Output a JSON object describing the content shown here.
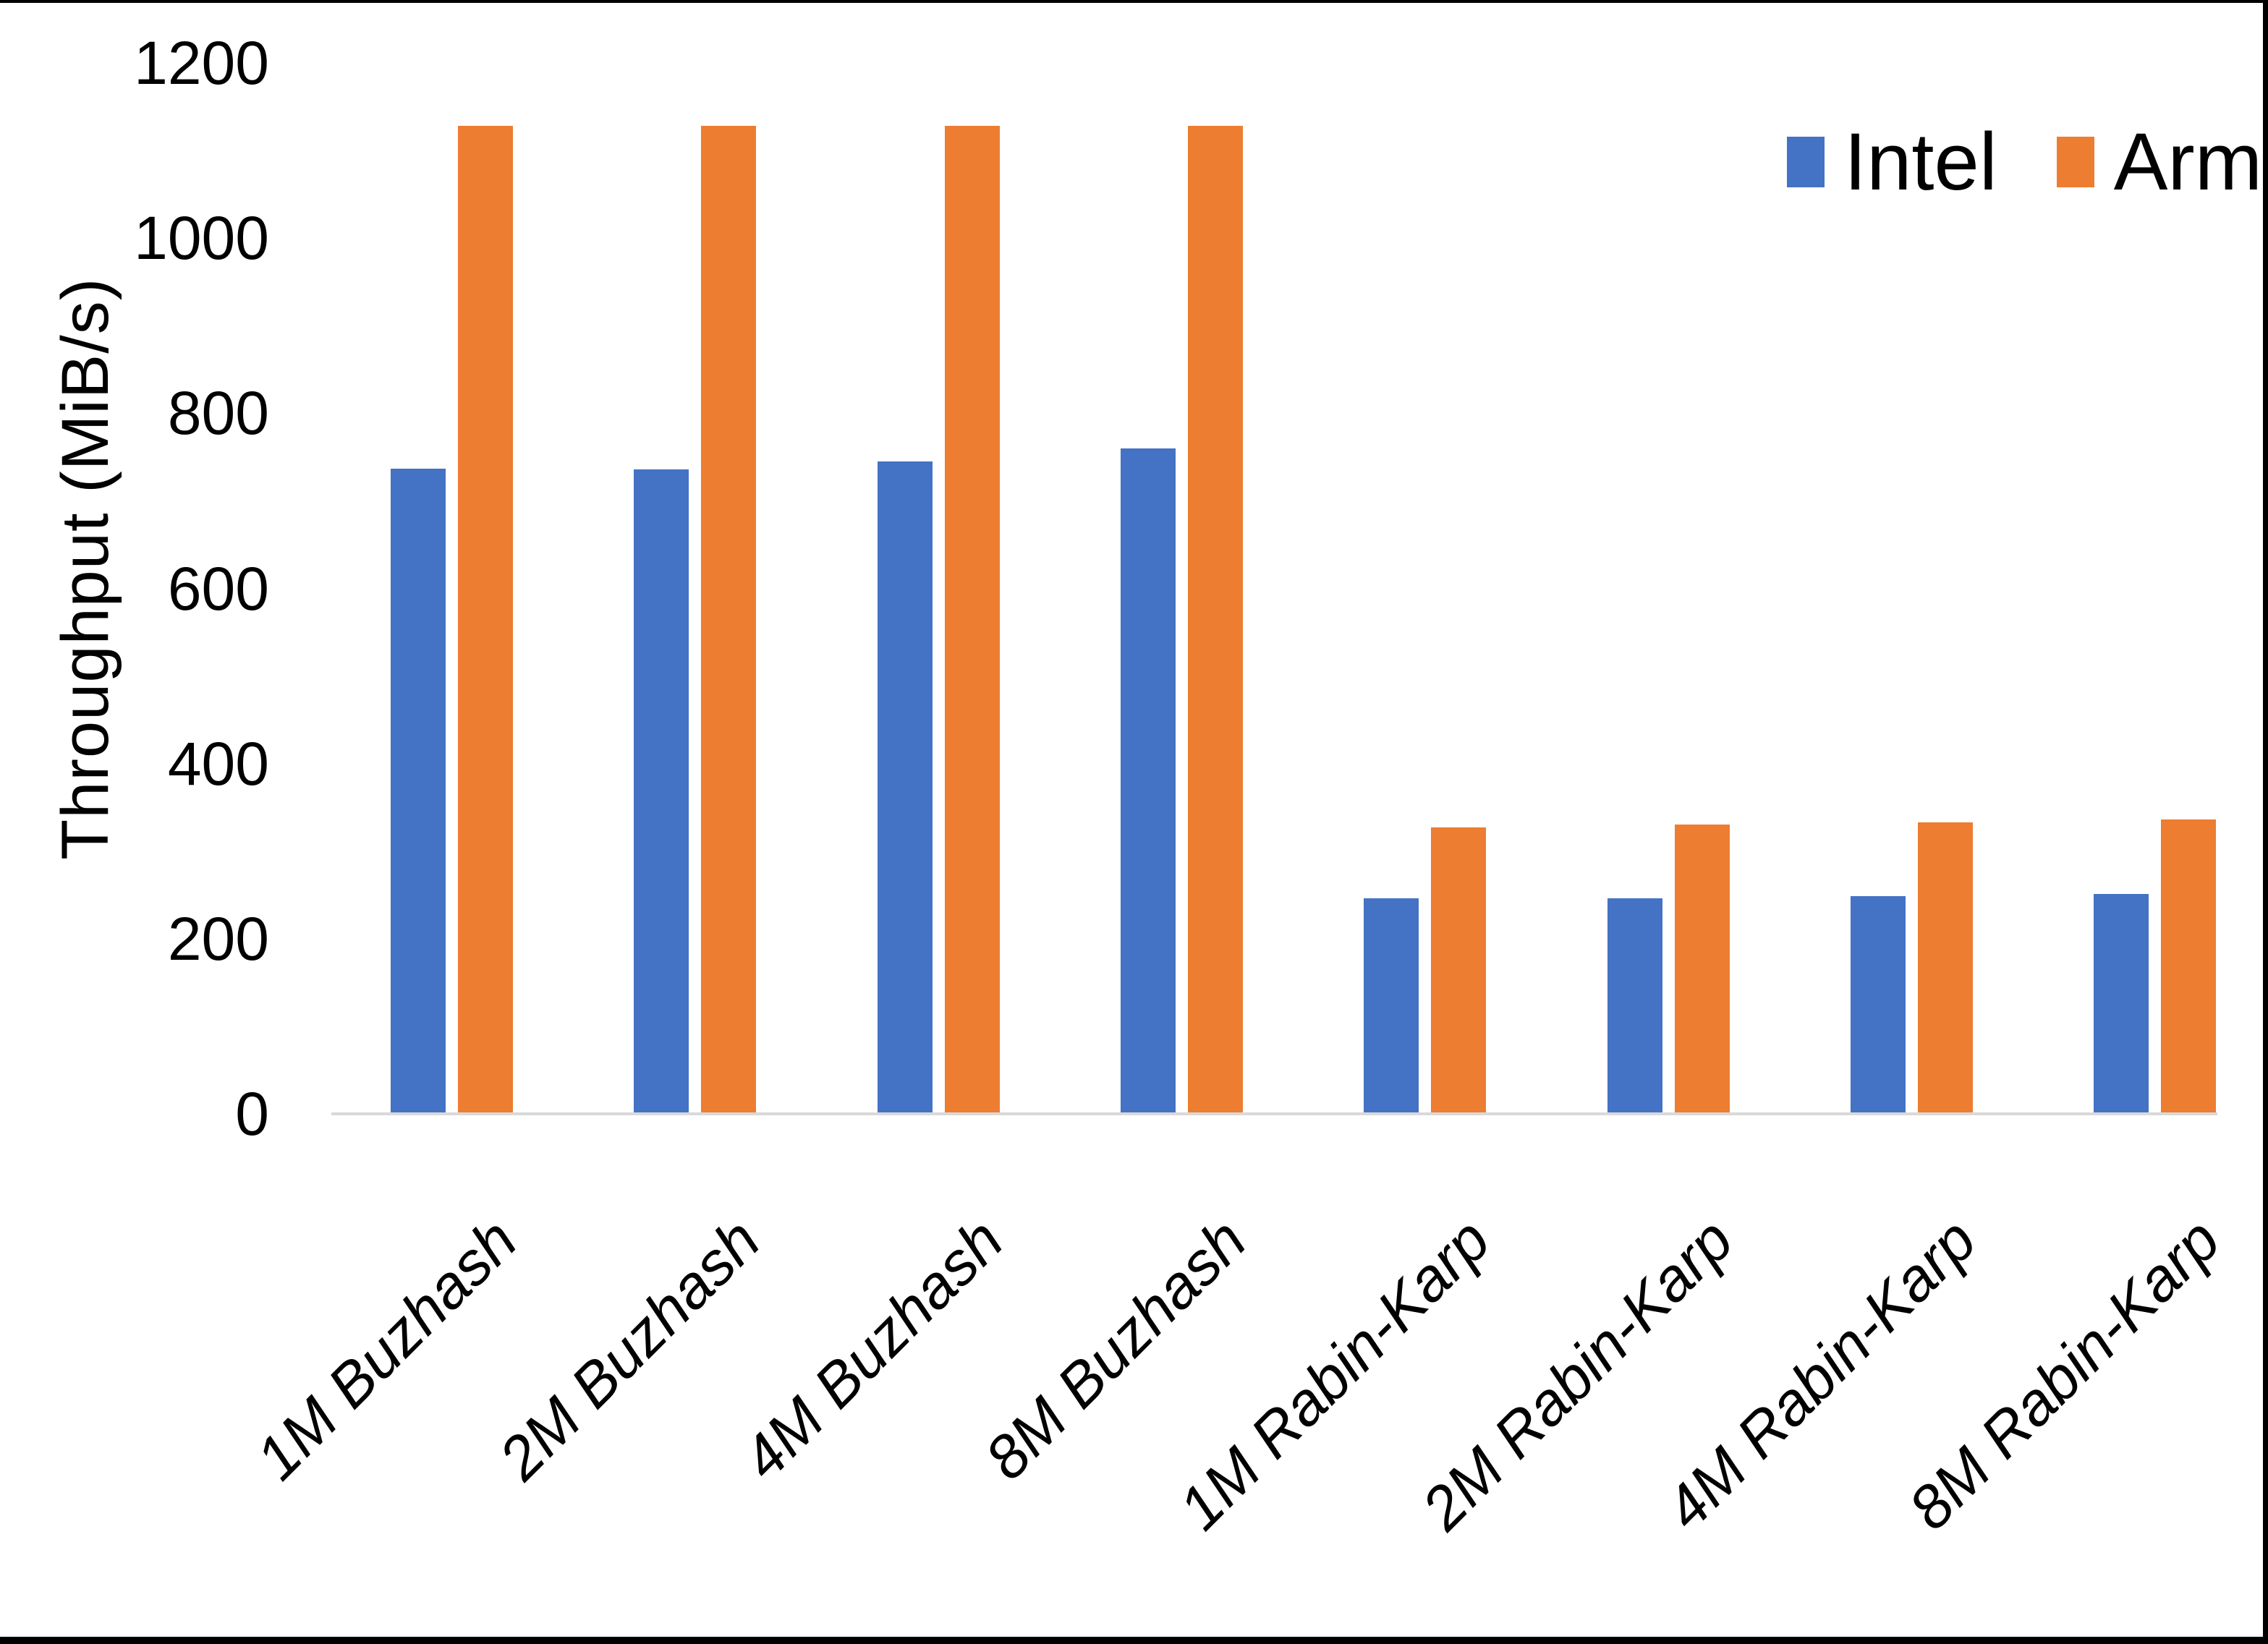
{
  "chart_data": {
    "type": "bar",
    "title": "",
    "ylabel": "Throughput (MiB/s)",
    "xlabel": "",
    "ylim": [
      0,
      1200
    ],
    "ytick_step": 200,
    "ytick_labels": [
      "0",
      "200",
      "400",
      "600",
      "800",
      "1000",
      "1200"
    ],
    "grid": false,
    "legend_position": "top-right",
    "categories": [
      "1M Buzhash",
      "2M Buzhash",
      "4M Buzhash",
      "8M Buzhash",
      "1M Rabin-Karp",
      "2M Rabin-Karp",
      "4M Rabin-Karp",
      "8M Rabin-Karp"
    ],
    "series": [
      {
        "name": "Intel",
        "color": "#4472C4",
        "values": [
          737,
          736,
          745,
          760,
          246,
          246,
          249,
          251
        ]
      },
      {
        "name": "Arm",
        "color": "#ED7D31",
        "values": [
          1128,
          1128,
          1128,
          1128,
          327,
          330,
          333,
          336
        ]
      }
    ],
    "colors": {
      "intel": "#4472C4",
      "arm": "#ED7D31",
      "axis_line": "#D9D9D9",
      "text": "#000000",
      "background": "#FFFFFF",
      "frame_border": "#000000"
    }
  }
}
